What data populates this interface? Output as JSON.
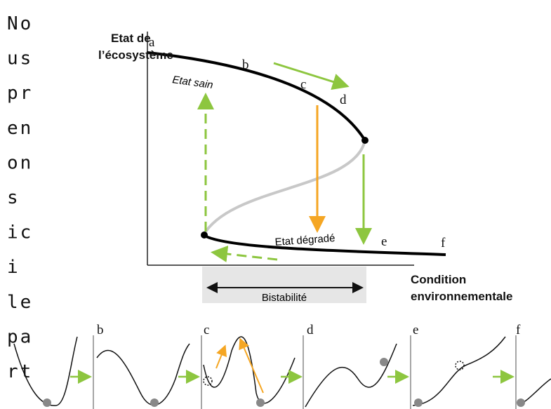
{
  "sidebar": {
    "lines": [
      "No",
      "us",
      "pr",
      "en",
      "on",
      "s",
      "ic",
      "i",
      "le",
      "pa",
      "rt"
    ]
  },
  "diagram": {
    "y_axis_label": [
      "Etat de",
      "l’écosystème"
    ],
    "x_axis_label": [
      "Condition",
      "environnementale"
    ],
    "points": [
      "a",
      "b",
      "c",
      "d",
      "e",
      "f"
    ],
    "healthy_state": "Etat sain",
    "degraded_state": "Etat dégradé",
    "bistability": "Bistabilité",
    "panels": [
      "b",
      "c",
      "d",
      "e",
      "f"
    ]
  }
}
